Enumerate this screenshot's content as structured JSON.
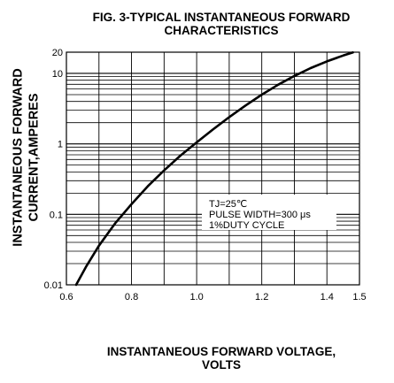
{
  "chart_data": {
    "type": "line",
    "title_line1": "FIG. 3-TYPICAL INSTANTANEOUS FORWARD",
    "title_line2": "CHARACTERISTICS",
    "xlabel_line1": "INSTANTANEOUS FORWARD VOLTAGE,",
    "xlabel_line2": "VOLTS",
    "ylabel_line1": "INSTANTANEOUS FORWARD",
    "ylabel_line2": "CURRENT,AMPERES",
    "xlim": [
      0.6,
      1.5
    ],
    "ylim": [
      0.01,
      20
    ],
    "yscale": "log",
    "grid": true,
    "x_ticks": [
      0.6,
      0.8,
      1.0,
      1.2,
      1.4,
      1.5
    ],
    "x_tick_labels": [
      "0.6",
      "0.8",
      "1.0",
      "1.2",
      "1.4",
      "1.5"
    ],
    "y_ticks": [
      0.01,
      0.1,
      1,
      10,
      20
    ],
    "y_tick_labels": [
      "0.01",
      "0.1",
      "1",
      "10",
      "20"
    ],
    "annotation": [
      "TJ=25℃",
      "PULSE WIDTH=300 μs",
      "1%DUTY CYCLE"
    ],
    "series": [
      {
        "x": [
          0.63,
          0.66,
          0.7,
          0.75,
          0.8,
          0.85,
          0.9,
          0.95,
          1.0,
          1.05,
          1.1,
          1.15,
          1.2,
          1.25,
          1.3,
          1.35,
          1.4,
          1.45,
          1.48
        ],
        "values": [
          0.01,
          0.018,
          0.036,
          0.075,
          0.14,
          0.25,
          0.42,
          0.68,
          1.05,
          1.6,
          2.4,
          3.5,
          5.0,
          6.9,
          9.2,
          11.9,
          14.8,
          17.9,
          19.8
        ]
      }
    ]
  }
}
